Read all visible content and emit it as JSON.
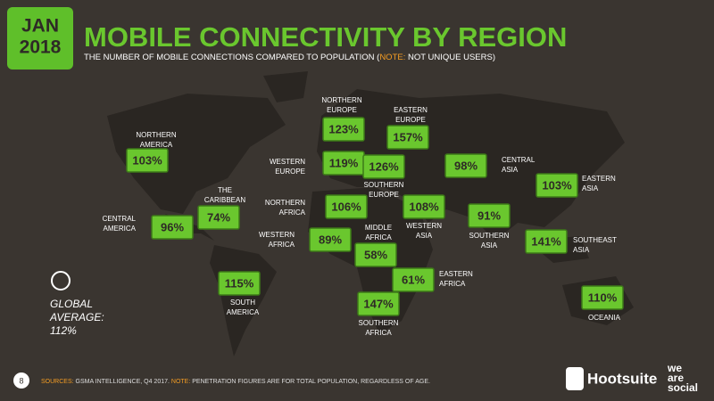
{
  "header": {
    "date_lines": [
      "JAN",
      "2018"
    ],
    "title": "MOBILE CONNECTIVITY BY REGION",
    "subtitle": {
      "before": "THE NUMBER OF MOBILE CONNECTIONS COMPARED TO POPULATION (",
      "note": "NOTE:",
      "after": " NOT UNIQUE USERS)"
    }
  },
  "regions": [
    {
      "name_lines": [
        "NORTHERN",
        "AMERICA"
      ],
      "value": "103%"
    },
    {
      "name_lines": [
        "THE",
        "CARIBBEAN"
      ],
      "value": "74%"
    },
    {
      "name_lines": [
        "CENTRAL",
        "AMERICA"
      ],
      "value": "96%"
    },
    {
      "name_lines": [
        "SOUTH",
        "AMERICA"
      ],
      "value": "115%"
    },
    {
      "name_lines": [
        "NORTHERN",
        "EUROPE"
      ],
      "value": "123%"
    },
    {
      "name_lines": [
        "EASTERN",
        "EUROPE"
      ],
      "value": "157%"
    },
    {
      "name_lines": [
        "WESTERN",
        "EUROPE"
      ],
      "value": "119%"
    },
    {
      "name_lines": [
        "SOUTHERN",
        "EUROPE"
      ],
      "value": "126%"
    },
    {
      "name_lines": [
        "CENTRAL",
        "ASIA"
      ],
      "value": "98%"
    },
    {
      "name_lines": [
        "EASTERN",
        "ASIA"
      ],
      "value": "103%"
    },
    {
      "name_lines": [
        "NORTHERN",
        "AFRICA"
      ],
      "value": "106%"
    },
    {
      "name_lines": [
        "WESTERN",
        "ASIA"
      ],
      "value": "108%"
    },
    {
      "name_lines": [
        "SOUTHERN",
        "ASIA"
      ],
      "value": "91%"
    },
    {
      "name_lines": [
        "SOUTHEAST",
        "ASIA"
      ],
      "value": "141%"
    },
    {
      "name_lines": [
        "WESTERN",
        "AFRICA"
      ],
      "value": "89%"
    },
    {
      "name_lines": [
        "MIDDLE",
        "AFRICA"
      ],
      "value": "58%"
    },
    {
      "name_lines": [
        "EASTERN",
        "AFRICA"
      ],
      "value": "61%"
    },
    {
      "name_lines": [
        "SOUTHERN",
        "AFRICA"
      ],
      "value": "147%"
    },
    {
      "name_lines": [
        "OCEANIA"
      ],
      "value": "110%"
    }
  ],
  "global_average": {
    "lines": [
      "GLOBAL",
      "AVERAGE:",
      "112%"
    ]
  },
  "footer": {
    "page": "8",
    "sources_label": "SOURCES:",
    "sources": " GSMA INTELLIGENCE, Q4 2017. ",
    "note_label": "NOTE:",
    "note": " PENETRATION FIGURES ARE FOR TOTAL POPULATION, REGARDLESS OF AGE.",
    "brand1": "Hootsuite",
    "brand2_lines": [
      "we",
      "are",
      "social"
    ]
  }
}
